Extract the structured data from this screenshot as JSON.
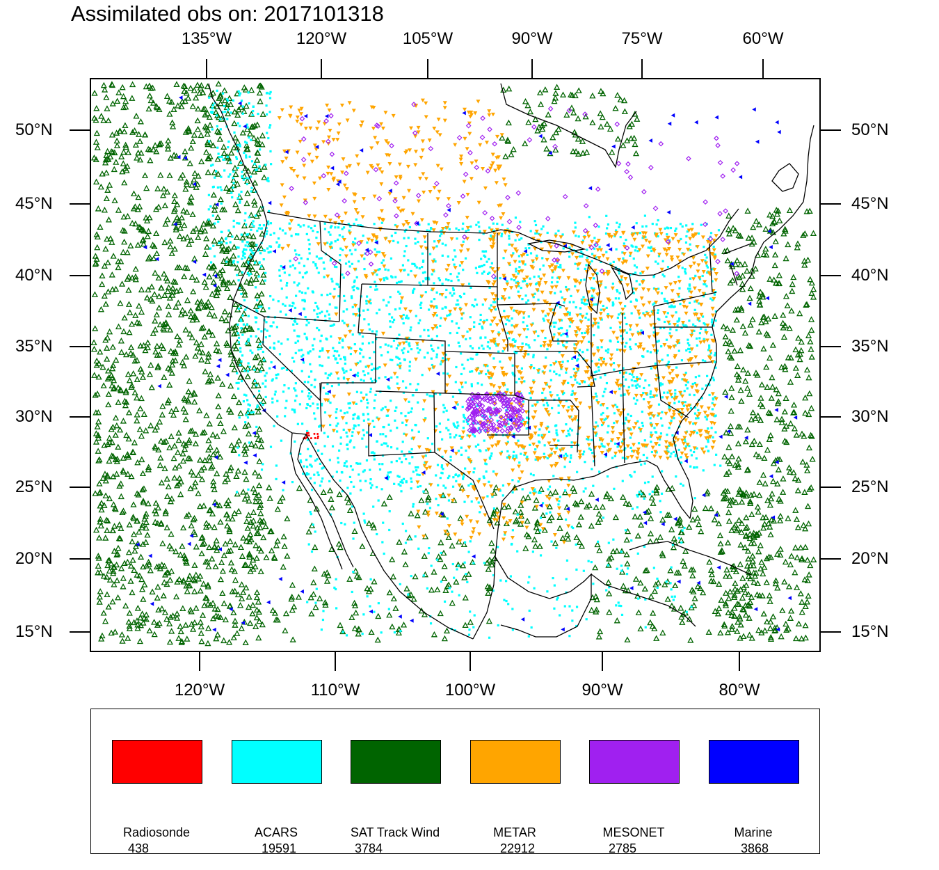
{
  "title": "Assimilated obs on: 2017101318",
  "top_ticks": [
    "135°W",
    "120°W",
    "105°W",
    "90°W",
    "75°W",
    "60°W"
  ],
  "bottom_ticks": [
    "120°W",
    "110°W",
    "100°W",
    "90°W",
    "80°W"
  ],
  "left_ticks": [
    "50°N",
    "45°N",
    "40°N",
    "35°N",
    "30°N",
    "25°N",
    "20°N",
    "15°N"
  ],
  "right_ticks": [
    "50°N",
    "45°N",
    "40°N",
    "35°N",
    "30°N",
    "25°N",
    "20°N",
    "15°N"
  ],
  "legend": [
    {
      "name": "Radiosonde",
      "count": "438",
      "color": "#ff0000",
      "marker": "dot"
    },
    {
      "name": "ACARS",
      "count": "19591",
      "color": "#00ffff",
      "marker": "square"
    },
    {
      "name": "SAT Track Wind",
      "count": "3784",
      "color": "#006400",
      "marker": "triangle-up"
    },
    {
      "name": "METAR",
      "count": "22912",
      "color": "#ffa500",
      "marker": "triangle-down"
    },
    {
      "name": "MESONET",
      "count": "2785",
      "color": "#a020f0",
      "marker": "diamond"
    },
    {
      "name": "Marine",
      "count": "3868",
      "color": "#0000ff",
      "marker": "triangle-left"
    }
  ],
  "colors": {
    "land_outline": "#000000",
    "frame": "#000000"
  }
}
